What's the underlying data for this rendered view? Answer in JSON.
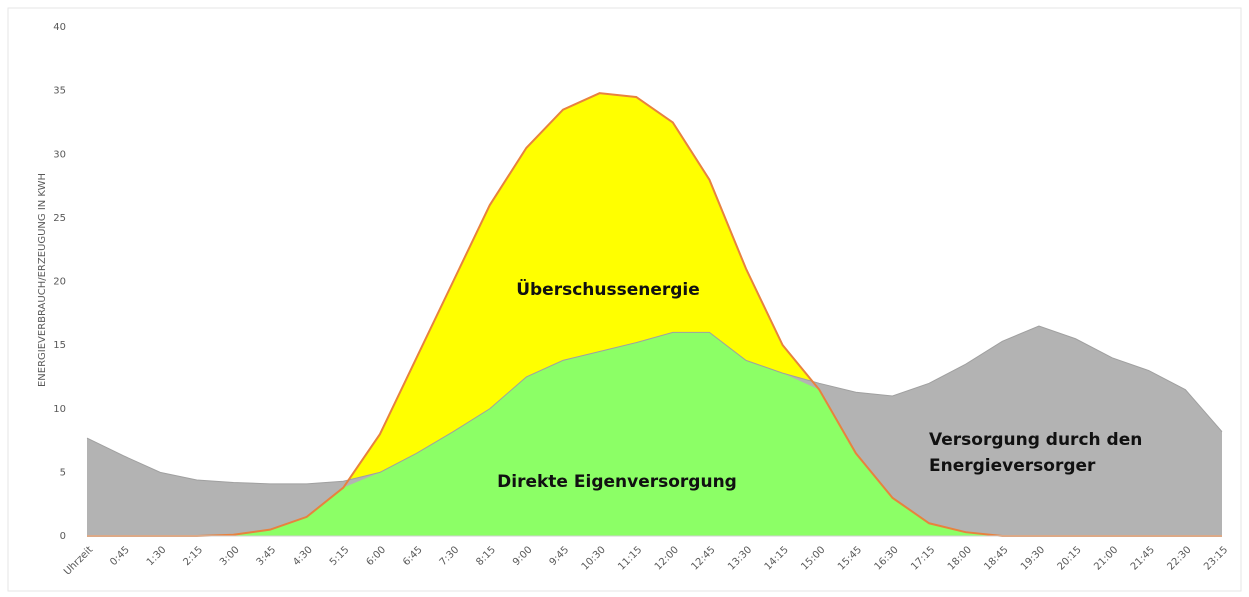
{
  "chart_data": {
    "type": "area",
    "ylabel": "ENERGIEVERBRAUCH/ERZEUGUNG IN KWH",
    "categories": [
      "Uhrzeit",
      "0:45",
      "1:30",
      "2:15",
      "3:00",
      "3:45",
      "4:30",
      "5:15",
      "6:00",
      "6:45",
      "7:30",
      "8:15",
      "9:00",
      "9:45",
      "10:30",
      "11:15",
      "12:00",
      "12:45",
      "13:30",
      "14:15",
      "15:00",
      "15:45",
      "16:30",
      "17:15",
      "18:00",
      "18:45",
      "19:30",
      "20:15",
      "21:00",
      "21:45",
      "22:30",
      "23:15"
    ],
    "series": [
      {
        "color": "#b3b3b3",
        "values": [
          7.7,
          6.3,
          5.0,
          4.4,
          4.2,
          4.1,
          4.1,
          4.3,
          5.0,
          6.5,
          8.2,
          10.0,
          12.5,
          13.8,
          14.5,
          15.2,
          16.0,
          16.0,
          13.8,
          12.8,
          12.0,
          11.3,
          11.0,
          12.0,
          13.5,
          15.3,
          16.5,
          15.5,
          14.0,
          13.0,
          11.5,
          8.2
        ]
      },
      {
        "color": "#ffff00",
        "line_color": "#e8823e",
        "values": [
          0,
          0,
          0,
          0,
          0.1,
          0.5,
          1.5,
          3.8,
          8,
          14,
          20,
          26,
          30.5,
          33.5,
          34.8,
          34.5,
          32.5,
          28,
          21,
          15,
          11.5,
          6.5,
          3,
          1,
          0.3,
          0,
          0,
          0,
          0,
          0,
          0,
          0
        ]
      }
    ],
    "overlap_color": "#8cff66",
    "annotations": [
      "Überschussenergie",
      "Direkte Eigenversorgung",
      "Versorgung durch den",
      "Energieversorger"
    ],
    "ylim": [
      0,
      40
    ],
    "yticks": [
      0,
      5,
      10,
      15,
      20,
      25,
      30,
      35,
      40
    ]
  }
}
